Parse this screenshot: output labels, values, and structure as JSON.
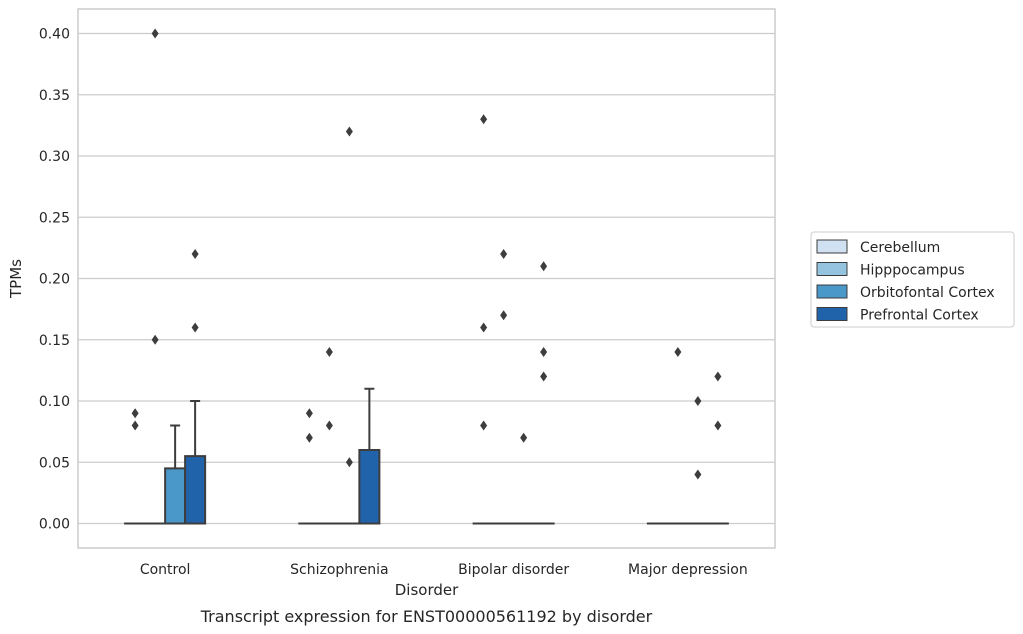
{
  "caption": "Transcript expression for ENST00000561192 by disorder",
  "chart_data": {
    "type": "box",
    "xlabel": "Disorder",
    "ylabel": "TPMs",
    "ylim": [
      -0.02,
      0.42
    ],
    "yticks": [
      0.0,
      0.05,
      0.1,
      0.15,
      0.2,
      0.25,
      0.3,
      0.35,
      0.4
    ],
    "ytick_labels": [
      "0.00",
      "0.05",
      "0.10",
      "0.15",
      "0.20",
      "0.25",
      "0.30",
      "0.35",
      "0.40"
    ],
    "grid": true,
    "legend_position": "right",
    "categories": [
      "Control",
      "Schizophrenia",
      "Bipolar disorder",
      "Major depression"
    ],
    "series": [
      {
        "name": "Cerebellum",
        "color": "#d0e1f2",
        "boxes": [
          {
            "q1": 0,
            "median": 0,
            "q3": 0,
            "whisker_low": 0,
            "whisker_high": 0,
            "outliers": [
              0.09,
              0.08
            ]
          },
          {
            "q1": 0,
            "median": 0,
            "q3": 0,
            "whisker_low": 0,
            "whisker_high": 0,
            "outliers": [
              0.09,
              0.07
            ]
          },
          {
            "q1": 0,
            "median": 0,
            "q3": 0,
            "whisker_low": 0,
            "whisker_high": 0,
            "outliers": [
              0.33,
              0.16,
              0.08
            ]
          },
          {
            "q1": 0,
            "median": 0,
            "q3": 0,
            "whisker_low": 0,
            "whisker_high": 0,
            "outliers": []
          }
        ]
      },
      {
        "name": "Hipppocampus",
        "color": "#94c4df",
        "boxes": [
          {
            "q1": 0,
            "median": 0,
            "q3": 0,
            "whisker_low": 0,
            "whisker_high": 0,
            "outliers": [
              0.4,
              0.15
            ]
          },
          {
            "q1": 0,
            "median": 0,
            "q3": 0,
            "whisker_low": 0,
            "whisker_high": 0,
            "outliers": [
              0.14,
              0.08
            ]
          },
          {
            "q1": 0,
            "median": 0,
            "q3": 0,
            "whisker_low": 0,
            "whisker_high": 0,
            "outliers": [
              0.22,
              0.17
            ]
          },
          {
            "q1": 0,
            "median": 0,
            "q3": 0,
            "whisker_low": 0,
            "whisker_high": 0,
            "outliers": [
              0.14
            ]
          }
        ]
      },
      {
        "name": "Orbitofontal Cortex",
        "color": "#4a98c9",
        "boxes": [
          {
            "q1": 0,
            "median": 0,
            "q3": 0.045,
            "whisker_low": 0,
            "whisker_high": 0.08,
            "outliers": []
          },
          {
            "q1": 0,
            "median": 0,
            "q3": 0,
            "whisker_low": 0,
            "whisker_high": 0,
            "outliers": [
              0.32,
              0.05
            ]
          },
          {
            "q1": 0,
            "median": 0,
            "q3": 0,
            "whisker_low": 0,
            "whisker_high": 0,
            "outliers": [
              0.07
            ]
          },
          {
            "q1": 0,
            "median": 0,
            "q3": 0,
            "whisker_low": 0,
            "whisker_high": 0,
            "outliers": [
              0.1,
              0.04
            ]
          }
        ]
      },
      {
        "name": "Prefrontal Cortex",
        "color": "#2163aa",
        "boxes": [
          {
            "q1": 0,
            "median": 0,
            "q3": 0.055,
            "whisker_low": 0,
            "whisker_high": 0.1,
            "outliers": [
              0.22,
              0.16
            ]
          },
          {
            "q1": 0,
            "median": 0,
            "q3": 0.06,
            "whisker_low": 0,
            "whisker_high": 0.11,
            "outliers": []
          },
          {
            "q1": 0,
            "median": 0,
            "q3": 0,
            "whisker_low": 0,
            "whisker_high": 0,
            "outliers": [
              0.21,
              0.14,
              0.12
            ]
          },
          {
            "q1": 0,
            "median": 0,
            "q3": 0,
            "whisker_low": 0,
            "whisker_high": 0,
            "outliers": [
              0.12,
              0.08
            ]
          }
        ]
      }
    ]
  }
}
